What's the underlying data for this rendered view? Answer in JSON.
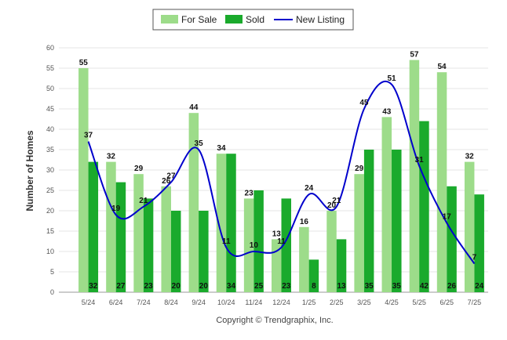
{
  "chart_data": {
    "type": "bar",
    "categories": [
      "5/24",
      "6/24",
      "7/24",
      "8/24",
      "9/24",
      "10/24",
      "11/24",
      "12/24",
      "1/25",
      "2/25",
      "3/25",
      "4/25",
      "5/25",
      "6/25",
      "7/25"
    ],
    "series": [
      {
        "name": "For Sale",
        "type": "bar",
        "color": "#9ddc8a",
        "values": [
          55,
          32,
          29,
          26,
          44,
          34,
          23,
          13,
          16,
          20,
          29,
          43,
          57,
          54,
          32
        ]
      },
      {
        "name": "Sold",
        "type": "bar",
        "color": "#1aaa2c",
        "values": [
          32,
          27,
          23,
          20,
          20,
          34,
          25,
          23,
          8,
          13,
          35,
          35,
          42,
          26,
          24
        ]
      },
      {
        "name": "New Listing",
        "type": "line",
        "color": "#0000cc",
        "values": [
          37,
          19,
          21,
          27,
          35,
          11,
          10,
          11,
          24,
          21,
          45,
          51,
          31,
          17,
          7
        ]
      }
    ],
    "ylabel": "Number of Homes",
    "xlabel": "",
    "ylim": [
      0,
      60
    ],
    "yticks": [
      0,
      5,
      10,
      15,
      20,
      25,
      30,
      35,
      40,
      45,
      50,
      55,
      60
    ],
    "grid": true,
    "legend": "top-center",
    "footer": "Copyright © Trendgraphix, Inc."
  }
}
